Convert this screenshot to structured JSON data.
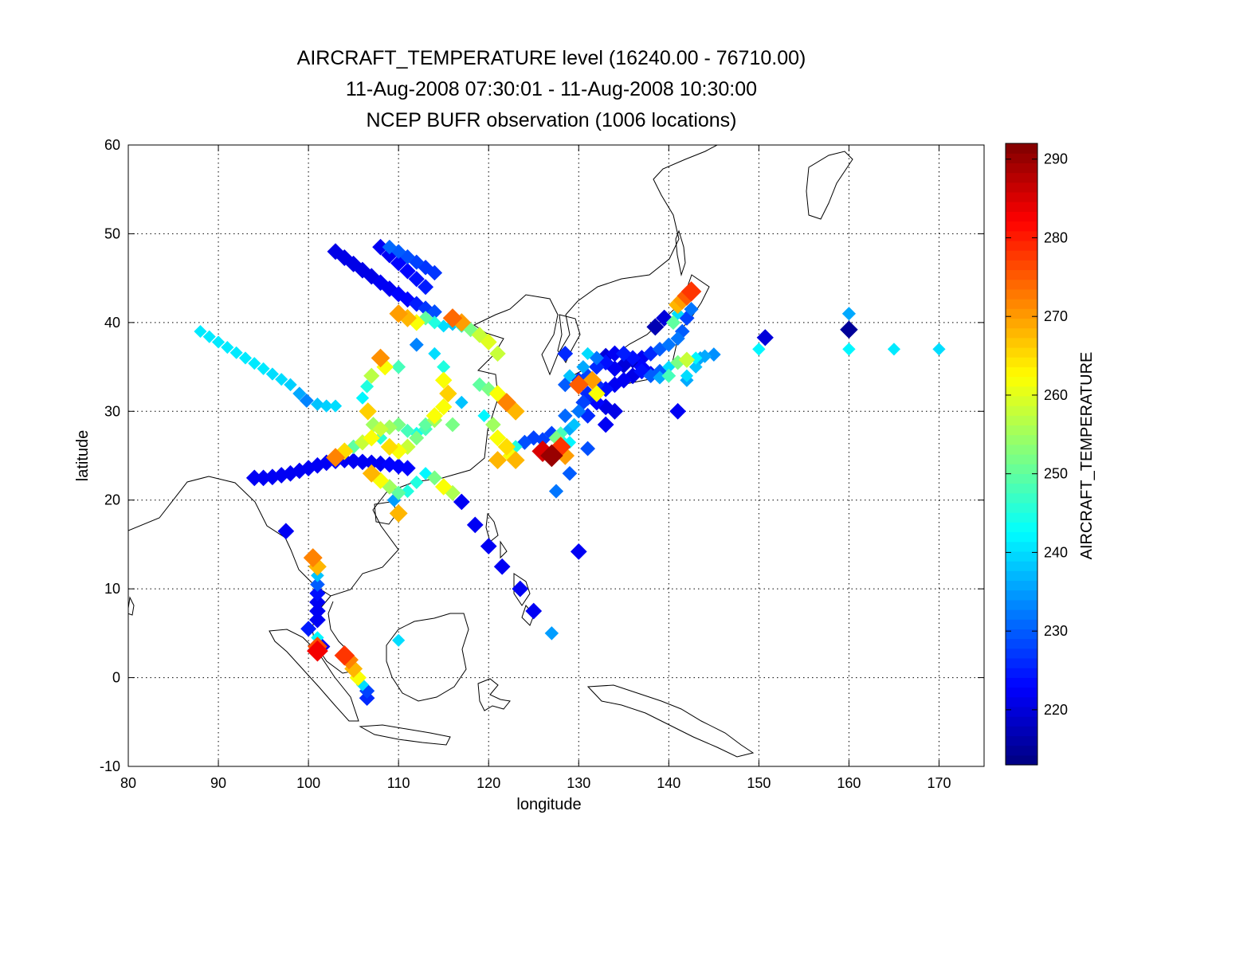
{
  "chart_data": {
    "type": "scatter",
    "title": [
      "AIRCRAFT_TEMPERATURE level (16240.00 - 76710.00)",
      "11-Aug-2008 07:30:01 - 11-Aug-2008 10:30:00",
      "NCEP BUFR observation (1006 locations)"
    ],
    "xlabel": "longitude",
    "ylabel": "latitude",
    "xlim": [
      80,
      175
    ],
    "ylim": [
      -10,
      60
    ],
    "xticks": [
      "80",
      "90",
      "100",
      "110",
      "120",
      "130",
      "140",
      "150",
      "160",
      "170"
    ],
    "yticks": [
      "60",
      "50",
      "40",
      "30",
      "20",
      "10",
      "0",
      "-10"
    ],
    "grid": true,
    "colorbar": {
      "label": "AIRCRAFT_TEMPERATURE",
      "min": 213,
      "max": 292,
      "ticks": [
        "290",
        "280",
        "270",
        "260",
        "250",
        "240",
        "230",
        "220"
      ],
      "colormap": "jet"
    },
    "marker": "diamond",
    "points": [
      [
        88,
        39,
        241
      ],
      [
        89,
        38.4,
        241
      ],
      [
        90,
        37.8,
        241
      ],
      [
        91,
        37.2,
        241
      ],
      [
        92,
        36.6,
        241
      ],
      [
        93,
        36,
        241
      ],
      [
        94,
        35.4,
        241
      ],
      [
        95,
        34.8,
        241
      ],
      [
        96,
        34.2,
        240
      ],
      [
        97,
        33.6,
        240
      ],
      [
        98,
        33,
        239
      ],
      [
        99,
        32,
        236
      ],
      [
        99.8,
        31.2,
        233
      ],
      [
        101,
        30.8,
        238
      ],
      [
        102,
        30.6,
        239
      ],
      [
        103,
        30.6,
        240
      ],
      [
        94,
        22.5,
        222
      ],
      [
        95,
        22.5,
        222
      ],
      [
        96,
        22.6,
        222
      ],
      [
        97,
        22.8,
        222
      ],
      [
        98,
        23,
        222
      ],
      [
        99,
        23.3,
        222
      ],
      [
        100,
        23.6,
        222
      ],
      [
        101,
        23.9,
        222
      ],
      [
        102,
        24.2,
        222
      ],
      [
        103,
        24.4,
        222
      ],
      [
        104,
        24.5,
        222
      ],
      [
        105,
        24.4,
        222
      ],
      [
        106,
        24.3,
        222
      ],
      [
        107,
        24.2,
        222
      ],
      [
        108,
        24.1,
        222
      ],
      [
        109,
        24,
        223
      ],
      [
        110,
        23.8,
        223
      ],
      [
        111,
        23.6,
        223
      ],
      [
        103,
        48,
        221
      ],
      [
        104,
        47.3,
        221
      ],
      [
        105,
        46.6,
        221
      ],
      [
        106,
        45.9,
        221
      ],
      [
        107,
        45.2,
        221
      ],
      [
        108,
        44.5,
        222
      ],
      [
        109,
        43.8,
        222
      ],
      [
        110,
        43.2,
        223
      ],
      [
        111,
        42.6,
        223
      ],
      [
        112,
        42.1,
        225
      ],
      [
        113,
        41.6,
        227
      ],
      [
        114,
        41.2,
        229
      ],
      [
        108,
        48.5,
        222
      ],
      [
        109,
        47.6,
        222
      ],
      [
        110,
        46.7,
        223
      ],
      [
        111,
        45.8,
        223
      ],
      [
        112,
        44.9,
        224
      ],
      [
        113,
        44,
        225
      ],
      [
        109,
        48.5,
        231
      ],
      [
        110,
        48,
        230
      ],
      [
        111,
        47.4,
        229
      ],
      [
        112,
        46.8,
        228
      ],
      [
        113,
        46.2,
        227
      ],
      [
        114,
        45.6,
        227
      ],
      [
        110,
        41,
        270
      ],
      [
        111,
        40.5,
        268
      ],
      [
        112,
        40,
        262
      ],
      [
        113,
        40.5,
        250
      ],
      [
        114,
        40,
        245
      ],
      [
        115,
        39.6,
        240
      ],
      [
        116,
        39.8,
        238
      ],
      [
        117,
        39.6,
        245
      ],
      [
        118,
        39.2,
        252
      ],
      [
        119,
        38.6,
        258
      ],
      [
        120,
        37.8,
        260
      ],
      [
        121,
        36.5,
        258
      ],
      [
        116,
        40.5,
        274
      ],
      [
        117,
        40,
        270
      ],
      [
        108,
        36,
        271
      ],
      [
        108.5,
        35,
        262
      ],
      [
        107,
        34,
        257
      ],
      [
        106.5,
        32.8,
        245
      ],
      [
        106,
        31.5,
        242
      ],
      [
        106.6,
        30,
        266
      ],
      [
        107.2,
        28.5,
        255
      ],
      [
        108,
        27,
        246
      ],
      [
        109,
        26,
        265
      ],
      [
        110,
        25.5,
        262
      ],
      [
        111,
        26,
        258
      ],
      [
        112,
        27,
        252
      ],
      [
        113,
        28,
        248
      ],
      [
        114,
        29,
        255
      ],
      [
        115,
        30.5,
        262
      ],
      [
        115.5,
        32,
        266
      ],
      [
        115,
        33.5,
        262
      ],
      [
        115,
        35,
        245
      ],
      [
        114,
        36.5,
        240
      ],
      [
        112,
        37.5,
        233
      ],
      [
        110,
        35,
        248
      ],
      [
        103,
        24.8,
        272
      ],
      [
        104,
        25.5,
        265
      ],
      [
        105,
        26,
        250
      ],
      [
        106,
        26.5,
        258
      ],
      [
        107,
        27,
        262
      ],
      [
        108,
        28,
        258
      ],
      [
        109,
        28.2,
        255
      ],
      [
        110,
        28.5,
        252
      ],
      [
        111,
        27.8,
        248
      ],
      [
        112,
        27.5,
        244
      ],
      [
        113,
        28.5,
        250
      ],
      [
        114,
        29.5,
        262
      ],
      [
        116,
        28.5,
        252
      ],
      [
        117,
        31,
        238
      ],
      [
        107,
        23,
        268
      ],
      [
        108,
        22.2,
        262
      ],
      [
        109,
        21.5,
        255
      ],
      [
        110,
        20.8,
        250
      ],
      [
        111,
        21,
        245
      ],
      [
        109.5,
        20,
        235
      ],
      [
        110,
        18.5,
        268
      ],
      [
        112,
        22,
        245
      ],
      [
        113,
        23,
        242
      ],
      [
        114,
        22.5,
        252
      ],
      [
        115,
        21.5,
        262
      ],
      [
        116,
        20.8,
        256
      ],
      [
        119,
        33,
        250
      ],
      [
        120,
        32.5,
        252
      ],
      [
        121,
        32,
        262
      ],
      [
        122,
        31,
        272
      ],
      [
        123,
        30,
        268
      ],
      [
        119.5,
        29.5,
        242
      ],
      [
        120.5,
        28.5,
        255
      ],
      [
        121,
        27,
        262
      ],
      [
        122,
        26,
        265
      ],
      [
        122.5,
        25,
        262
      ],
      [
        123,
        26,
        245
      ],
      [
        121,
        24.5,
        268
      ],
      [
        117,
        19.8,
        222
      ],
      [
        118.5,
        17.2,
        222
      ],
      [
        120,
        14.8,
        222
      ],
      [
        121.5,
        12.5,
        222
      ],
      [
        123.5,
        10,
        222
      ],
      [
        125,
        7.5,
        222
      ],
      [
        127,
        5,
        235
      ],
      [
        123,
        24.5,
        268
      ],
      [
        124,
        26.5,
        229
      ],
      [
        125,
        27,
        228
      ],
      [
        126,
        26.8,
        228
      ],
      [
        127,
        27.5,
        228
      ],
      [
        127,
        25,
        290
      ],
      [
        126,
        25.5,
        285
      ],
      [
        128,
        26,
        278
      ],
      [
        128.5,
        25,
        270
      ],
      [
        129,
        26.5,
        242
      ],
      [
        128,
        27.5,
        248
      ],
      [
        127.5,
        27,
        252
      ],
      [
        129.5,
        28.5,
        238
      ],
      [
        130,
        30,
        232
      ],
      [
        130.5,
        31,
        228
      ],
      [
        131,
        32,
        226
      ],
      [
        130,
        33,
        275
      ],
      [
        131.5,
        33.5,
        270
      ],
      [
        132,
        32,
        262
      ],
      [
        131,
        34,
        228
      ],
      [
        132,
        35,
        226
      ],
      [
        133,
        35.5,
        224
      ],
      [
        134,
        34.8,
        222
      ],
      [
        135,
        35.2,
        220
      ],
      [
        136,
        35.8,
        218
      ],
      [
        137,
        36,
        222
      ],
      [
        138,
        36.5,
        226
      ],
      [
        139,
        37,
        230
      ],
      [
        140,
        37.5,
        232
      ],
      [
        141,
        38.2,
        232
      ],
      [
        141.5,
        39,
        230
      ],
      [
        142,
        40.5,
        228
      ],
      [
        142.5,
        41.5,
        232
      ],
      [
        131,
        36.5,
        240
      ],
      [
        132,
        36,
        232
      ],
      [
        133,
        36.2,
        220
      ],
      [
        134,
        36.5,
        222
      ],
      [
        135,
        36.5,
        225
      ],
      [
        136,
        36,
        224
      ],
      [
        137,
        35,
        223
      ],
      [
        138,
        34.2,
        222
      ],
      [
        139,
        34.5,
        230
      ],
      [
        140,
        35,
        240
      ],
      [
        141,
        35.5,
        252
      ],
      [
        142,
        35.8,
        258
      ],
      [
        143,
        36,
        242
      ],
      [
        144,
        36.2,
        236
      ],
      [
        145,
        36.4,
        234
      ],
      [
        141,
        42,
        268
      ],
      [
        141.5,
        42.5,
        270
      ],
      [
        142,
        43,
        275
      ],
      [
        142.5,
        43.5,
        278
      ],
      [
        140.5,
        40,
        250
      ],
      [
        141,
        41,
        240
      ],
      [
        132,
        33,
        226
      ],
      [
        133,
        32.5,
        224
      ],
      [
        134,
        33,
        222
      ],
      [
        135,
        33.5,
        222
      ],
      [
        136,
        34,
        221
      ],
      [
        137,
        34.5,
        224
      ],
      [
        138,
        34,
        230
      ],
      [
        139,
        33.8,
        236
      ],
      [
        140,
        34,
        248
      ],
      [
        142,
        34,
        240
      ],
      [
        143,
        35,
        238
      ],
      [
        142,
        33.5,
        236
      ],
      [
        143.5,
        36,
        236
      ],
      [
        130,
        33.5,
        226
      ],
      [
        131,
        31.5,
        225
      ],
      [
        132,
        31,
        223
      ],
      [
        133,
        30.5,
        221
      ],
      [
        134,
        30,
        221
      ],
      [
        133,
        28.5,
        222
      ],
      [
        131,
        29.5,
        226
      ],
      [
        128.5,
        33,
        230
      ],
      [
        129,
        34,
        238
      ],
      [
        130.5,
        35,
        236
      ],
      [
        128.5,
        36.5,
        226
      ],
      [
        128.5,
        29.5,
        231
      ],
      [
        129,
        28,
        236
      ],
      [
        128,
        26.8,
        244
      ],
      [
        129,
        23,
        230
      ],
      [
        127.5,
        21,
        232
      ],
      [
        130,
        14.2,
        222
      ],
      [
        131,
        25.8,
        229
      ],
      [
        141,
        30,
        222
      ],
      [
        138.5,
        39.5,
        217
      ],
      [
        139.5,
        40.5,
        220
      ],
      [
        100.5,
        13.5,
        272
      ],
      [
        101,
        12.5,
        268
      ],
      [
        101,
        11.5,
        238
      ],
      [
        101,
        10.5,
        230
      ],
      [
        101,
        9.5,
        224
      ],
      [
        101,
        8.5,
        222
      ],
      [
        101,
        7.5,
        222
      ],
      [
        101,
        6.5,
        222
      ],
      [
        100,
        5.5,
        225
      ],
      [
        101,
        4.5,
        242
      ],
      [
        101,
        3.5,
        276
      ],
      [
        101,
        3,
        283
      ],
      [
        101.5,
        3.5,
        222
      ],
      [
        104,
        2.5,
        278
      ],
      [
        104.5,
        2,
        272
      ],
      [
        105,
        1,
        268
      ],
      [
        105.5,
        0,
        262
      ],
      [
        106,
        -0.8,
        240
      ],
      [
        106.5,
        -1.5,
        228
      ],
      [
        106.5,
        -2.3,
        226
      ],
      [
        97.5,
        16.5,
        222
      ],
      [
        110,
        4.2,
        240
      ],
      [
        150,
        37,
        242
      ],
      [
        150.7,
        38.3,
        220
      ],
      [
        160,
        41,
        236
      ],
      [
        160,
        39.2,
        215
      ],
      [
        160,
        37,
        242
      ],
      [
        165,
        37,
        241
      ],
      [
        170,
        37,
        240
      ]
    ]
  }
}
